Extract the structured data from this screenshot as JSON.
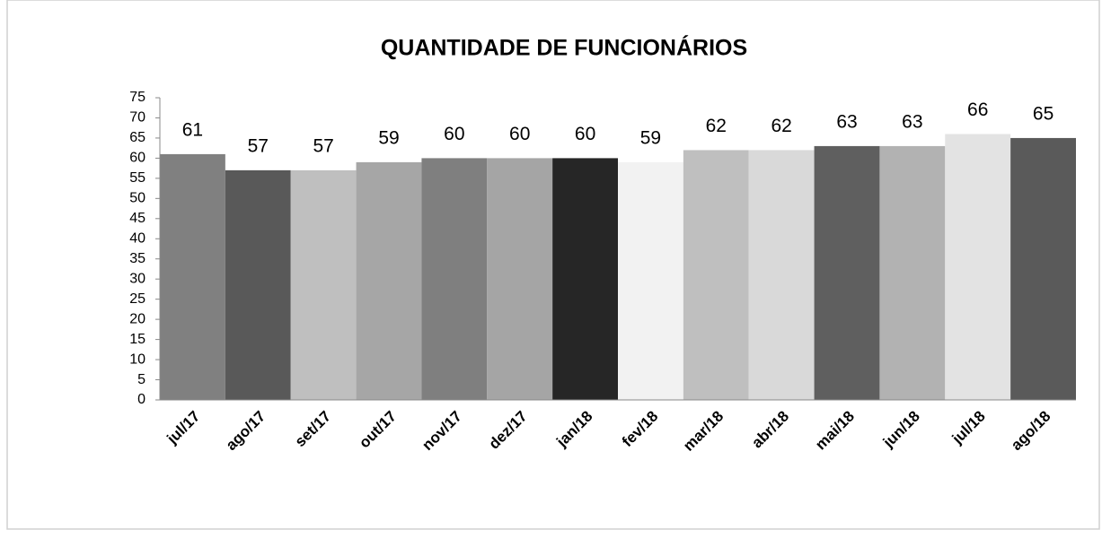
{
  "chart_data": {
    "type": "bar",
    "title": "QUANTIDADE DE FUNCIONÁRIOS",
    "categories": [
      "jul/17",
      "ago/17",
      "set/17",
      "out/17",
      "nov/17",
      "dez/17",
      "jan/18",
      "fev/18",
      "mar/18",
      "abr/18",
      "mai/18",
      "jun/18",
      "jul/18",
      "ago/18"
    ],
    "values": [
      61,
      57,
      57,
      59,
      60,
      60,
      60,
      59,
      62,
      62,
      63,
      63,
      66,
      65
    ],
    "colors": [
      "#808080",
      "#595959",
      "#bfbfbf",
      "#a6a6a6",
      "#7f7f7f",
      "#a5a5a5",
      "#262626",
      "#f2f2f2",
      "#bfbfbf",
      "#d9d9d9",
      "#5f5f5f",
      "#b2b2b2",
      "#e3e3e3",
      "#5a5a5a"
    ],
    "ylim": [
      0,
      75
    ],
    "yticks": [
      0,
      5,
      10,
      15,
      20,
      25,
      30,
      35,
      40,
      45,
      50,
      55,
      60,
      65,
      70,
      75
    ],
    "grid": false
  }
}
